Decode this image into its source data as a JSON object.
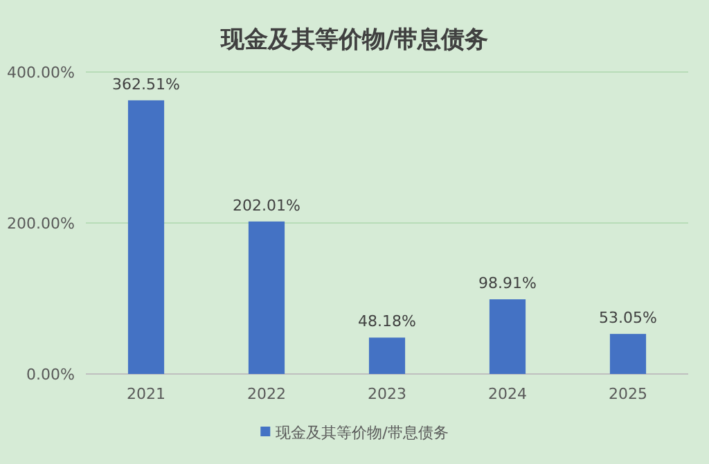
{
  "chart_data": {
    "type": "bar",
    "title": "现金及其等价物/带息债务",
    "categories": [
      "2021",
      "2022",
      "2023",
      "2024",
      "2025"
    ],
    "series": [
      {
        "name": "现金及其等价物/带息债务",
        "color": "#4472c4",
        "values": [
          362.51,
          202.01,
          48.18,
          98.91,
          53.05
        ],
        "value_labels": [
          "362.51%",
          "202.01%",
          "48.18%",
          "98.91%",
          "53.05%"
        ]
      }
    ],
    "ylim": [
      0,
      400
    ],
    "yticks": [
      {
        "value": 0,
        "label": "0.00%"
      },
      {
        "value": 200,
        "label": "200.00%"
      },
      {
        "value": 400,
        "label": "400.00%"
      }
    ],
    "grid": "y",
    "legend": "bottom"
  }
}
